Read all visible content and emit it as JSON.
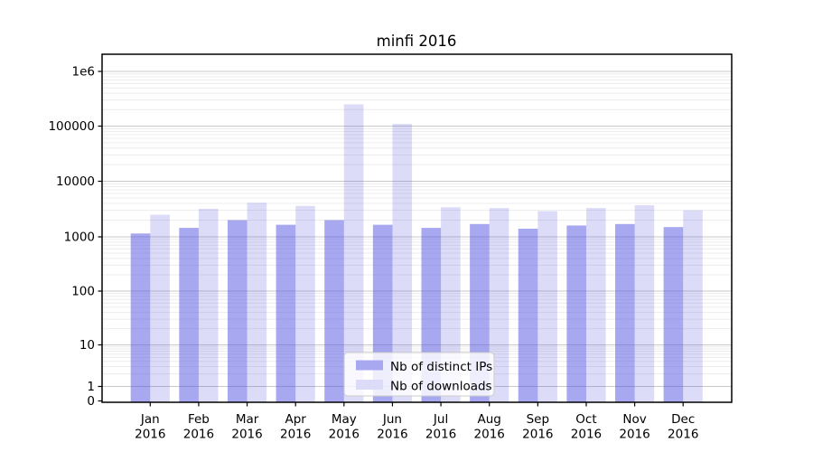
{
  "title": "minfi 2016",
  "legend": {
    "items": [
      {
        "key": "ips",
        "label": "Nb of distinct IPs"
      },
      {
        "key": "downloads",
        "label": "Nb of downloads"
      }
    ]
  },
  "colors": {
    "ips": "rgba(81,81,227,0.5)",
    "downloads": "rgba(80,80,220,0.2)",
    "ips_solid": "#a8a8f1",
    "downloads_solid": "#dcdcf8",
    "major_grid": "#c8c8c8",
    "minor_grid": "#ececec",
    "spine": "#000000",
    "legend_border": "#cccccc",
    "legend_bg": "rgba(255,255,255,0.8)",
    "text": "#000000"
  },
  "y_axis": {
    "ticks": [
      {
        "label": "1e6",
        "value": 1000000
      },
      {
        "label": "100000",
        "value": 100000
      },
      {
        "label": "10000",
        "value": 10000
      },
      {
        "label": "1000",
        "value": 1000
      },
      {
        "label": "100",
        "value": 100
      },
      {
        "label": "10",
        "value": 10
      },
      {
        "label": "1",
        "value": 1
      },
      {
        "label": "0",
        "value": 0
      }
    ]
  },
  "x_axis": {
    "year": "2016",
    "months": [
      "Jan",
      "Feb",
      "Mar",
      "Apr",
      "May",
      "Jun",
      "Jul",
      "Aug",
      "Sep",
      "Oct",
      "Nov",
      "Dec"
    ]
  },
  "chart_data": {
    "type": "bar",
    "title": "minfi 2016",
    "categories": [
      "Jan 2016",
      "Feb 2016",
      "Mar 2016",
      "Apr 2016",
      "May 2016",
      "Jun 2016",
      "Jul 2016",
      "Aug 2016",
      "Sep 2016",
      "Oct 2016",
      "Nov 2016",
      "Dec 2016"
    ],
    "series": [
      {
        "name": "Nb of distinct IPs",
        "key": "ips",
        "values": [
          1150,
          1450,
          2000,
          1650,
          2000,
          1650,
          1450,
          1700,
          1400,
          1600,
          1700,
          1500
        ]
      },
      {
        "name": "Nb of downloads",
        "key": "downloads",
        "values": [
          2500,
          3200,
          4100,
          3600,
          250000,
          110000,
          3400,
          3300,
          2900,
          3300,
          3700,
          3000
        ]
      }
    ],
    "yscale": "symlog",
    "ylim": [
      0,
      2000000
    ],
    "xlabel": "",
    "ylabel": "",
    "grid": "horizontal major and minor log gridlines",
    "legend_position": "inside lower-center"
  }
}
